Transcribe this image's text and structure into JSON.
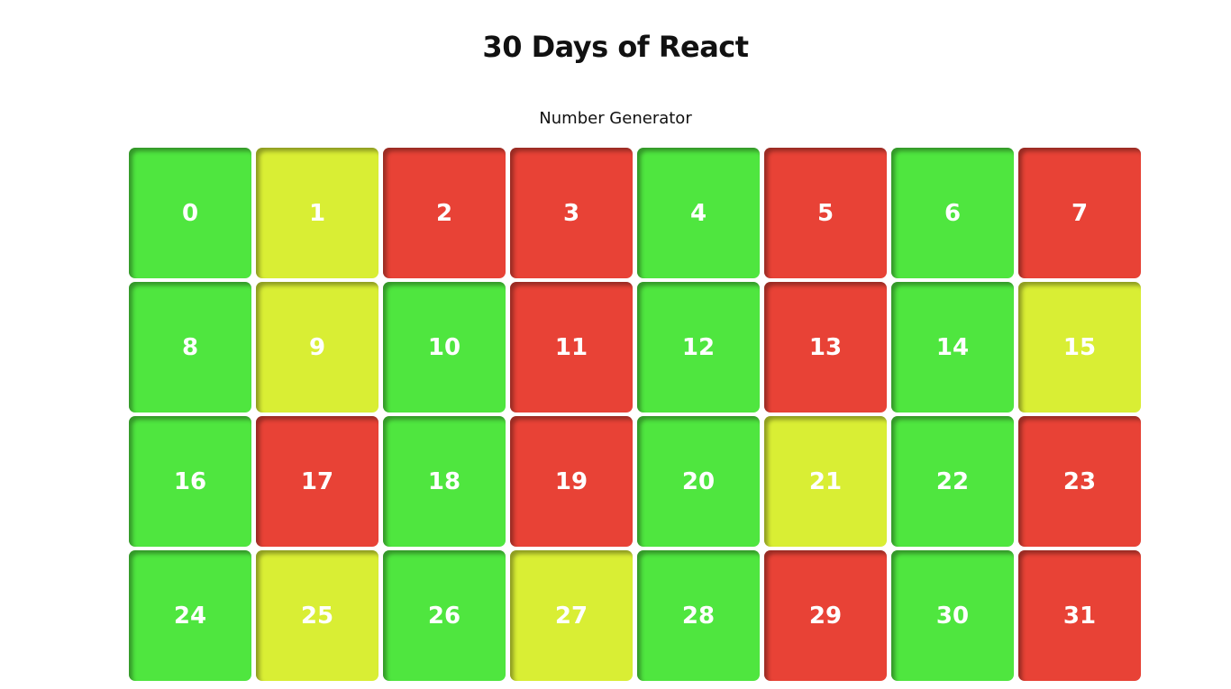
{
  "header": {
    "title": "30 Days of React",
    "subtitle": "Number Generator"
  },
  "colors": {
    "even": "#4fe63f",
    "odd": "#d9ee34",
    "prime": "#e84236"
  },
  "numbers": [
    {
      "value": "0",
      "kind": "even"
    },
    {
      "value": "1",
      "kind": "odd"
    },
    {
      "value": "2",
      "kind": "prime"
    },
    {
      "value": "3",
      "kind": "prime"
    },
    {
      "value": "4",
      "kind": "even"
    },
    {
      "value": "5",
      "kind": "prime"
    },
    {
      "value": "6",
      "kind": "even"
    },
    {
      "value": "7",
      "kind": "prime"
    },
    {
      "value": "8",
      "kind": "even"
    },
    {
      "value": "9",
      "kind": "odd"
    },
    {
      "value": "10",
      "kind": "even"
    },
    {
      "value": "11",
      "kind": "prime"
    },
    {
      "value": "12",
      "kind": "even"
    },
    {
      "value": "13",
      "kind": "prime"
    },
    {
      "value": "14",
      "kind": "even"
    },
    {
      "value": "15",
      "kind": "odd"
    },
    {
      "value": "16",
      "kind": "even"
    },
    {
      "value": "17",
      "kind": "prime"
    },
    {
      "value": "18",
      "kind": "even"
    },
    {
      "value": "19",
      "kind": "prime"
    },
    {
      "value": "20",
      "kind": "even"
    },
    {
      "value": "21",
      "kind": "odd"
    },
    {
      "value": "22",
      "kind": "even"
    },
    {
      "value": "23",
      "kind": "prime"
    },
    {
      "value": "24",
      "kind": "even"
    },
    {
      "value": "25",
      "kind": "odd"
    },
    {
      "value": "26",
      "kind": "even"
    },
    {
      "value": "27",
      "kind": "odd"
    },
    {
      "value": "28",
      "kind": "even"
    },
    {
      "value": "29",
      "kind": "prime"
    },
    {
      "value": "30",
      "kind": "even"
    },
    {
      "value": "31",
      "kind": "prime"
    }
  ]
}
